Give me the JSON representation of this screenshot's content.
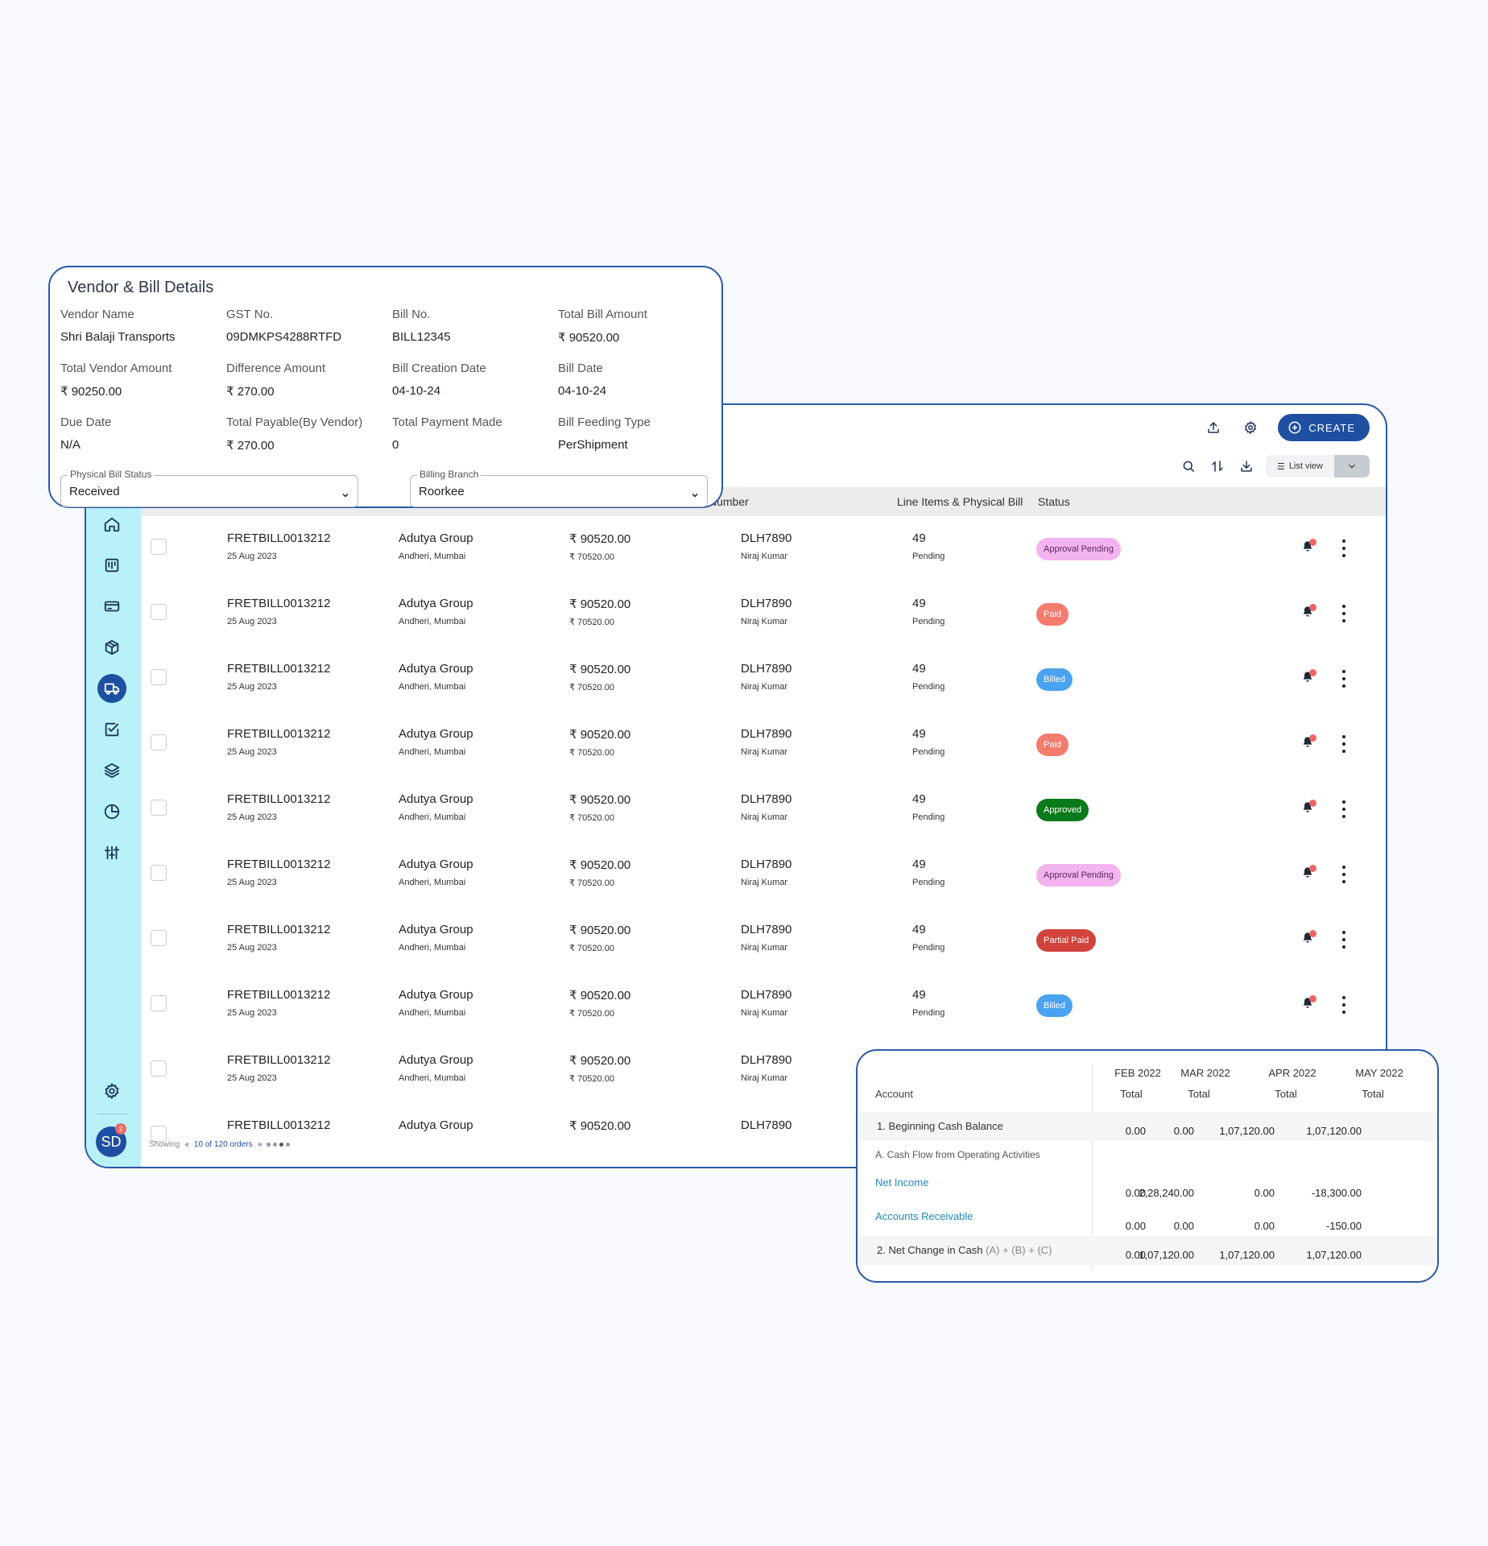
{
  "toolbar": {
    "create_label": "CREATE",
    "list_view_label": "List view"
  },
  "table": {
    "visible_headers": [
      "Number",
      "Line Items & Physical Bill",
      "Status"
    ],
    "rows": [
      {
        "bill_id": "FRETBILL0013212",
        "date": "25 Aug 2023",
        "vendor": "Adutya Group",
        "location": "Andheri, Mumbai",
        "amount": "₹ 90520.00",
        "sub_amount": "₹ 70520.00",
        "number": "DLH7890",
        "person": "Niraj Kumar",
        "line_items": "49",
        "physical": "Pending",
        "status": "Approval Pending"
      },
      {
        "bill_id": "FRETBILL0013212",
        "date": "25 Aug 2023",
        "vendor": "Adutya Group",
        "location": "Andheri, Mumbai",
        "amount": "₹ 90520.00",
        "sub_amount": "₹ 70520.00",
        "number": "DLH7890",
        "person": "Niraj Kumar",
        "line_items": "49",
        "physical": "Pending",
        "status": "Paid"
      },
      {
        "bill_id": "FRETBILL0013212",
        "date": "25 Aug 2023",
        "vendor": "Adutya Group",
        "location": "Andheri, Mumbai",
        "amount": "₹ 90520.00",
        "sub_amount": "₹ 70520.00",
        "number": "DLH7890",
        "person": "Niraj Kumar",
        "line_items": "49",
        "physical": "Pending",
        "status": "Billed"
      },
      {
        "bill_id": "FRETBILL0013212",
        "date": "25 Aug 2023",
        "vendor": "Adutya Group",
        "location": "Andheri, Mumbai",
        "amount": "₹ 90520.00",
        "sub_amount": "₹ 70520.00",
        "number": "DLH7890",
        "person": "Niraj Kumar",
        "line_items": "49",
        "physical": "Pending",
        "status": "Paid"
      },
      {
        "bill_id": "FRETBILL0013212",
        "date": "25 Aug 2023",
        "vendor": "Adutya Group",
        "location": "Andheri, Mumbai",
        "amount": "₹ 90520.00",
        "sub_amount": "₹ 70520.00",
        "number": "DLH7890",
        "person": "Niraj Kumar",
        "line_items": "49",
        "physical": "Pending",
        "status": "Approved"
      },
      {
        "bill_id": "FRETBILL0013212",
        "date": "25 Aug 2023",
        "vendor": "Adutya Group",
        "location": "Andheri, Mumbai",
        "amount": "₹ 90520.00",
        "sub_amount": "₹ 70520.00",
        "number": "DLH7890",
        "person": "Niraj Kumar",
        "line_items": "49",
        "physical": "Pending",
        "status": "Approval Pending"
      },
      {
        "bill_id": "FRETBILL0013212",
        "date": "25 Aug 2023",
        "vendor": "Adutya Group",
        "location": "Andheri, Mumbai",
        "amount": "₹ 90520.00",
        "sub_amount": "₹ 70520.00",
        "number": "DLH7890",
        "person": "Niraj Kumar",
        "line_items": "49",
        "physical": "Pending",
        "status": "Partial Paid"
      },
      {
        "bill_id": "FRETBILL0013212",
        "date": "25 Aug 2023",
        "vendor": "Adutya Group",
        "location": "Andheri, Mumbai",
        "amount": "₹ 90520.00",
        "sub_amount": "₹ 70520.00",
        "number": "DLH7890",
        "person": "Niraj Kumar",
        "line_items": "49",
        "physical": "Pending",
        "status": "Billed"
      },
      {
        "bill_id": "FRETBILL0013212",
        "date": "25 Aug 2023",
        "vendor": "Adutya Group",
        "location": "Andheri, Mumbai",
        "amount": "₹ 90520.00",
        "sub_amount": "₹ 70520.00",
        "number": "DLH7890",
        "person": "Niraj Kumar",
        "line_items": "",
        "physical": "",
        "status": ""
      },
      {
        "bill_id": "FRETBILL0013212",
        "date": "",
        "vendor": "Adutya Group",
        "location": "",
        "amount": "₹ 90520.00",
        "sub_amount": "",
        "number": "DLH7890",
        "person": "",
        "line_items": "",
        "physical": "",
        "status": ""
      }
    ]
  },
  "status_colors": {
    "Approval Pending": {
      "bg": "#f3b3f0",
      "fg": "#5a2a5a"
    },
    "Paid": {
      "bg": "#f47b6e",
      "fg": "#ffffff"
    },
    "Billed": {
      "bg": "#4aa3f0",
      "fg": "#ffffff"
    },
    "Approved": {
      "bg": "#0b7a1a",
      "fg": "#ffffff"
    },
    "Partial Paid": {
      "bg": "#d2433c",
      "fg": "#ffffff"
    }
  },
  "sidebar": {
    "icons": [
      "home-icon",
      "board-icon",
      "card-icon",
      "package-icon",
      "truck-icon",
      "checkbox-icon",
      "layers-icon",
      "pie-chart-icon",
      "sliders-icon",
      "gear-icon"
    ],
    "active": "truck-icon",
    "avatar_initials": "SD",
    "avatar_badge": "2"
  },
  "pagination": {
    "showing_label": "Showing",
    "range": "10 of 120 orders"
  },
  "vendor_details": {
    "title": "Vendor & Bill Details",
    "fields": [
      {
        "label": "Vendor Name",
        "value": "Shri Balaji Transports"
      },
      {
        "label": "GST No.",
        "value": "09DMKPS4288RTFD"
      },
      {
        "label": "Bill No.",
        "value": "BILL12345"
      },
      {
        "label": "Total Bill Amount",
        "value": "₹ 90520.00"
      },
      {
        "label": "Total Vendor Amount",
        "value": "₹ 90250.00"
      },
      {
        "label": "Difference Amount",
        "value": "₹ 270.00"
      },
      {
        "label": "Bill Creation Date",
        "value": "04-10-24"
      },
      {
        "label": "Bill Date",
        "value": "04-10-24"
      },
      {
        "label": "Due Date",
        "value": "N/A"
      },
      {
        "label": "Total Payable(By Vendor)",
        "value": "₹ 270.00"
      },
      {
        "label": "Total Payment Made",
        "value": "0"
      },
      {
        "label": "Bill Feeding Type",
        "value": "PerShipment"
      }
    ],
    "physical_bill_status": {
      "label": "Physical Bill Status",
      "value": "Received"
    },
    "billing_branch": {
      "label": "Billing Branch",
      "value": "Roorkee"
    }
  },
  "cash_flow": {
    "account_label": "Account",
    "months": [
      "FEB 2022",
      "MAR 2022",
      "APR 2022",
      "MAY 2022"
    ],
    "total_label": "Total",
    "rows": [
      {
        "label": "1. Beginning Cash Balance",
        "values": [
          "0.00",
          "0.00",
          "1,07,120.00",
          "1,07,120.00"
        ]
      },
      {
        "label": "A. Cash Flow from Operating Activities",
        "values": []
      },
      {
        "label": "Net Income",
        "values": [
          "0.00",
          "2,28,240.00",
          "0.00",
          "-18,300.00"
        ]
      },
      {
        "label": "Accounts Receivable",
        "values": [
          "0.00",
          "0.00",
          "0.00",
          "-150.00"
        ]
      },
      {
        "label": "2. Net Change in Cash",
        "formula": "(A) + (B) + (C)",
        "values": [
          "0.00",
          "1,07,120.00",
          "1,07,120.00",
          "1,07,120.00"
        ]
      }
    ]
  }
}
